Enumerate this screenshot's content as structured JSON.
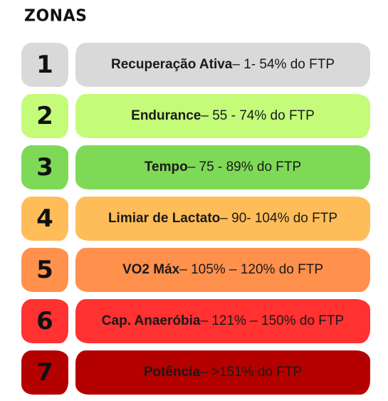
{
  "title": "ZONAS",
  "zones": [
    {
      "number": "1",
      "name": "Recuperação Ativa",
      "range": " – 1- 54% do FTP",
      "color": "#d9d9d9"
    },
    {
      "number": "2",
      "name": "Endurance",
      "range": " – 55 - 74% do FTP",
      "color": "#c4fc7a"
    },
    {
      "number": "3",
      "name": "Tempo",
      "range": " – 75 - 89% do FTP",
      "color": "#7ed957"
    },
    {
      "number": "4",
      "name": "Limiar de Lactato",
      "range": " – 90- 104% do FTP",
      "color": "#ffbd59"
    },
    {
      "number": "5",
      "name": "VO2 Máx",
      "range": " – 105% – 120% do FTP",
      "color": "#ff914d"
    },
    {
      "number": "6",
      "name": "Cap. Anaeróbia",
      "range": " – 121% – 150% do FTP",
      "color": "#ff3131"
    },
    {
      "number": "7",
      "name": "Potência",
      "range": " – >151% do FTP",
      "color": "#b50000"
    }
  ]
}
